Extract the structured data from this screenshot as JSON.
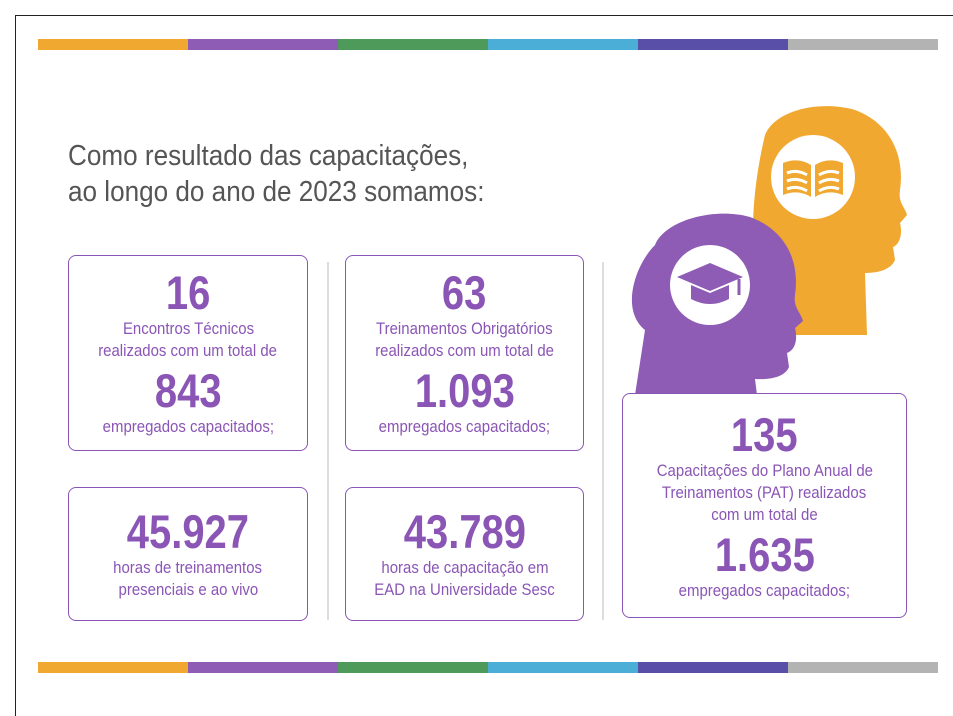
{
  "heading": [
    "Como resultado das capacitações,",
    "ao longo do ano de 2023 somamos:"
  ],
  "cards": [
    {
      "number": "16",
      "lines": [
        "Encontros Técnicos",
        "realizados com um total de"
      ],
      "number2": "843",
      "lines2": [
        "empregados capacitados;"
      ]
    },
    {
      "number": "63",
      "lines": [
        "Treinamentos Obrigatórios",
        "realizados com um total de"
      ],
      "number2": "1.093",
      "lines2": [
        "empregados capacitados;"
      ]
    },
    {
      "number": "45.927",
      "lines": [
        "horas de treinamentos",
        "presenciais e ao vivo"
      ]
    },
    {
      "number": "43.789",
      "lines": [
        "horas de capacitação em",
        "EAD na Universidade Sesc"
      ]
    },
    {
      "number": "135",
      "lines": [
        "Capacitações do Plano Anual de",
        "Treinamentos (PAT) realizados",
        "com um total de"
      ],
      "number2": "1.635",
      "lines2": [
        "empregados capacitados;"
      ]
    }
  ]
}
